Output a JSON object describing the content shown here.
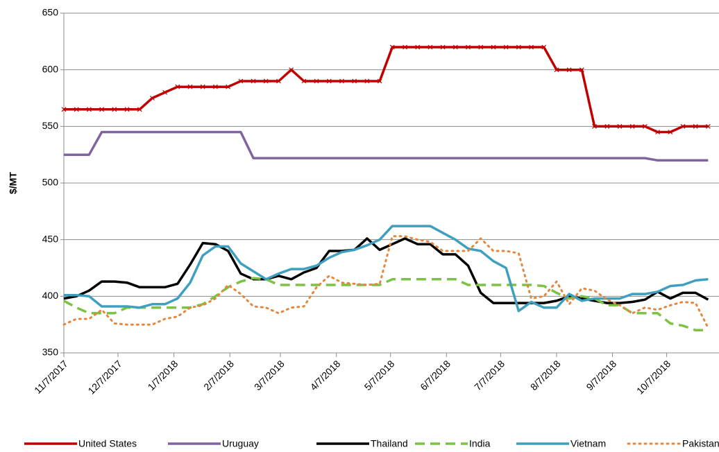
{
  "chart_data": {
    "type": "line",
    "y_label": "$/MT",
    "x": [
      "11/7/2017",
      "11/14/2017",
      "11/21/2017",
      "11/28/2017",
      "12/5/2017",
      "12/12/2017",
      "12/19/2017",
      "12/26/2017",
      "1/2/2018",
      "1/9/2018",
      "1/16/2018",
      "1/23/2018",
      "1/30/2018",
      "2/6/2018",
      "2/13/2018",
      "2/20/2018",
      "2/27/2018",
      "3/6/2018",
      "3/13/2018",
      "3/20/2018",
      "3/27/2018",
      "4/3/2018",
      "4/10/2018",
      "4/17/2018",
      "4/24/2018",
      "5/1/2018",
      "5/8/2018",
      "5/15/2018",
      "5/22/2018",
      "5/29/2018",
      "6/5/2018",
      "6/12/2018",
      "6/19/2018",
      "6/26/2018",
      "7/3/2018",
      "7/10/2018",
      "7/17/2018",
      "7/24/2018",
      "7/31/2018",
      "8/7/2018",
      "8/14/2018",
      "8/21/2018",
      "8/28/2018",
      "9/4/2018",
      "9/11/2018",
      "9/18/2018",
      "9/25/2018",
      "10/2/2018",
      "10/9/2018",
      "10/16/2018",
      "10/23/2018",
      "10/30/2018"
    ],
    "xlim": [
      "11/7/2017",
      "11/5/2018"
    ],
    "xticks": [
      "11/7/2017",
      "12/7/2017",
      "1/7/2018",
      "2/7/2018",
      "3/7/2018",
      "4/7/2018",
      "5/7/2018",
      "6/7/2018",
      "7/7/2018",
      "8/7/2018",
      "9/7/2018",
      "10/7/2018"
    ],
    "ylim": [
      350,
      650
    ],
    "yticks": [
      350,
      400,
      450,
      500,
      550,
      600,
      650
    ],
    "grid": true,
    "legend": "bottom",
    "series": [
      {
        "name": "United States",
        "color": "#c00000",
        "style": "solid",
        "marker": "x",
        "values": [
          565,
          565,
          565,
          565,
          565,
          565,
          565,
          575,
          580,
          585,
          585,
          585,
          585,
          585,
          590,
          590,
          590,
          590,
          600,
          590,
          590,
          590,
          590,
          590,
          590,
          590,
          620,
          620,
          620,
          620,
          620,
          620,
          620,
          620,
          620,
          620,
          620,
          620,
          620,
          600,
          600,
          600,
          550,
          550,
          550,
          550,
          550,
          545,
          545,
          550,
          550,
          550
        ]
      },
      {
        "name": "Uruguay",
        "color": "#8064a2",
        "style": "solid",
        "values": [
          525,
          525,
          525,
          545,
          545,
          545,
          545,
          545,
          545,
          545,
          545,
          545,
          545,
          545,
          545,
          522,
          522,
          522,
          522,
          522,
          522,
          522,
          522,
          522,
          522,
          522,
          522,
          522,
          522,
          522,
          522,
          522,
          522,
          522,
          522,
          522,
          522,
          522,
          522,
          522,
          522,
          522,
          522,
          522,
          522,
          522,
          522,
          520,
          520,
          520,
          520,
          520
        ]
      },
      {
        "name": "Thailand",
        "color": "#000000",
        "style": "solid",
        "values": [
          398,
          400,
          405,
          413,
          413,
          412,
          408,
          408,
          408,
          411,
          428,
          447,
          446,
          440,
          420,
          415,
          415,
          418,
          415,
          421,
          425,
          440,
          440,
          441,
          451,
          441,
          446,
          451,
          446,
          446,
          437,
          437,
          427,
          403,
          394,
          394,
          394,
          394,
          394,
          396,
          400,
          398,
          396,
          394,
          394,
          395,
          397,
          404,
          398,
          403,
          403,
          397
        ]
      },
      {
        "name": "India",
        "color": "#7cc243",
        "style": "dashed",
        "values": [
          396,
          390,
          385,
          385,
          385,
          390,
          390,
          390,
          390,
          390,
          390,
          393,
          400,
          408,
          413,
          416,
          415,
          410,
          410,
          410,
          410,
          410,
          410,
          410,
          410,
          410,
          415,
          415,
          415,
          415,
          415,
          415,
          410,
          410,
          410,
          410,
          410,
          410,
          409,
          403,
          398,
          400,
          398,
          392,
          392,
          385,
          385,
          385,
          376,
          374,
          370,
          370
        ]
      },
      {
        "name": "Vietnam",
        "color": "#3f9fbf",
        "style": "solid",
        "values": [
          401,
          401,
          400,
          391,
          391,
          391,
          390,
          393,
          393,
          398,
          412,
          436,
          444,
          444,
          429,
          422,
          415,
          420,
          424,
          424,
          427,
          434,
          439,
          441,
          445,
          450,
          462,
          462,
          462,
          462,
          456,
          450,
          442,
          440,
          431,
          425,
          387,
          395,
          390,
          390,
          402,
          396,
          398,
          398,
          398,
          402,
          402,
          404,
          409,
          410,
          414,
          415
        ]
      },
      {
        "name": "Pakistan",
        "color": "#e3873d",
        "style": "dotted",
        "values": [
          375,
          380,
          380,
          388,
          376,
          375,
          375,
          375,
          380,
          382,
          390,
          392,
          398,
          410,
          402,
          391,
          390,
          385,
          390,
          391,
          408,
          418,
          412,
          411,
          410,
          411,
          453,
          453,
          450,
          448,
          440,
          440,
          440,
          451,
          440,
          440,
          438,
          398,
          400,
          413,
          393,
          407,
          405,
          397,
          392,
          385,
          390,
          388,
          392,
          395,
          394,
          372
        ]
      }
    ]
  }
}
